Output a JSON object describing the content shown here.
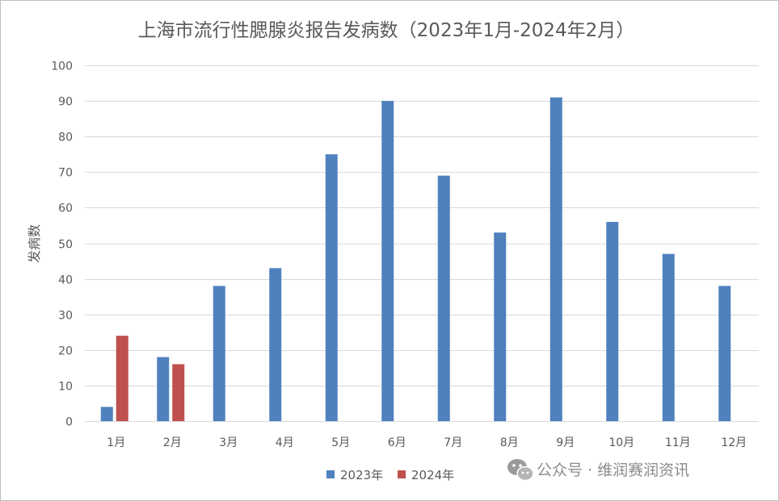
{
  "chart_data": {
    "type": "bar",
    "title": "上海市流行性腮腺炎报告发病数（2023年1月-2024年2月）",
    "ylabel": "发病数",
    "xlabel": "",
    "ylim": [
      0,
      100
    ],
    "yticks": [
      "0",
      "10",
      "20",
      "30",
      "40",
      "50",
      "60",
      "70",
      "80",
      "90",
      "100"
    ],
    "categories": [
      "1月",
      "2月",
      "3月",
      "4月",
      "5月",
      "6月",
      "7月",
      "8月",
      "9月",
      "10月",
      "11月",
      "12月"
    ],
    "series": [
      {
        "name": "2023年",
        "color": "#4f81bd",
        "values": [
          4,
          18,
          38,
          43,
          75,
          90,
          69,
          53,
          91,
          56,
          47,
          38
        ]
      },
      {
        "name": "2024年",
        "color": "#c0504d",
        "values": [
          24,
          16,
          null,
          null,
          null,
          null,
          null,
          null,
          null,
          null,
          null,
          null
        ]
      }
    ],
    "grid": true,
    "legend_position": "bottom"
  },
  "watermark": {
    "icon": "wechat-icon",
    "text": "公众号 · 维润赛润资讯"
  }
}
